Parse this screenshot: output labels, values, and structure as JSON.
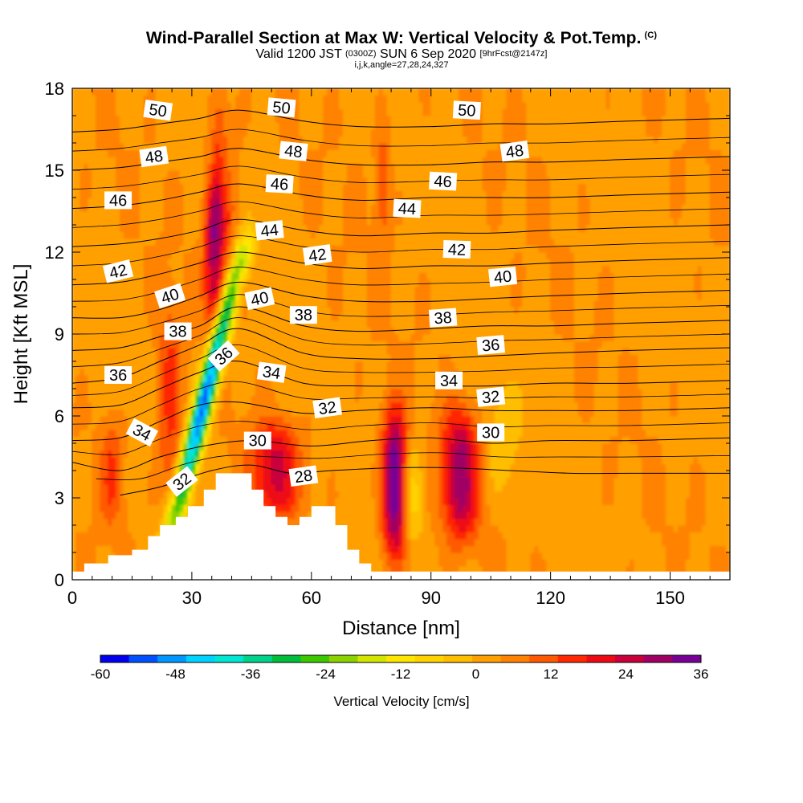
{
  "title": "Wind-Parallel Section at Max W: Vertical Velocity & Pot.Temp.",
  "title_mark": "(C)",
  "subtitle_main": "Valid 1200 JST",
  "subtitle_utc": "(0300Z)",
  "subtitle_date": "SUN 6 Sep 2020",
  "subtitle_fcst": "[9hrFcst@2147z]",
  "params": "i,j,k,angle=27,28,24,327",
  "chart_data": {
    "type": "heatmap",
    "xlabel": "Distance [nm]",
    "ylabel": "Height [Kft MSL]",
    "xlim": [
      0,
      165
    ],
    "ylim": [
      0,
      18
    ],
    "x_ticks": [
      0,
      30,
      60,
      90,
      120,
      150
    ],
    "x_tick_labels": [
      "0",
      "30",
      "60",
      "90",
      "120",
      "150"
    ],
    "y_ticks": [
      0,
      3,
      6,
      9,
      12,
      15,
      18
    ],
    "y_tick_labels": [
      "0",
      "3",
      "6",
      "9",
      "12",
      "15",
      "18"
    ],
    "fill_variable": "Vertical Velocity [cm/s]",
    "colorbar": {
      "label": "Vertical Velocity [cm/s]",
      "range": [
        -60,
        36
      ],
      "ticks": [
        -60,
        -48,
        -36,
        -24,
        -12,
        0,
        12,
        24,
        36
      ],
      "tick_labels": [
        "-60",
        "-48",
        "-36",
        "-24",
        "-12",
        "0",
        "12",
        "24",
        "36"
      ],
      "colors": [
        "#0000ee",
        "#0050ff",
        "#0096ff",
        "#00d2ff",
        "#00e6d2",
        "#00d28c",
        "#00be3c",
        "#3cc800",
        "#8cd200",
        "#d2e600",
        "#ffe600",
        "#ffd200",
        "#ffbe00",
        "#ffa000",
        "#ff8200",
        "#ff5a00",
        "#ff2800",
        "#ee0a14",
        "#c8003c",
        "#a00064",
        "#780096"
      ]
    },
    "background_w": 3,
    "vertical_velocity_features": [
      {
        "kind": "updraft",
        "x_center": 36,
        "x_halfwidth": 2.5,
        "y_range": [
          9,
          14.5
        ],
        "peak_w": 28
      },
      {
        "kind": "updraft",
        "x_center": 38,
        "x_halfwidth": 3,
        "y_range": [
          11.5,
          18
        ],
        "peak_w": 18
      },
      {
        "kind": "updraft",
        "x_center": 81,
        "x_halfwidth": 3,
        "y_range": [
          0.8,
          6.2
        ],
        "peak_w": 34
      },
      {
        "kind": "updraft",
        "x_center": 97.5,
        "x_halfwidth": 4.5,
        "y_range": [
          1.5,
          6.2
        ],
        "peak_w": 26
      },
      {
        "kind": "updraft",
        "x_center": 51,
        "x_halfwidth": 6,
        "y_range": [
          2.3,
          5.8
        ],
        "peak_w": 20
      },
      {
        "kind": "updraft",
        "x_center": 24.5,
        "x_halfwidth": 3,
        "y_range": [
          3,
          10
        ],
        "peak_w": 12
      },
      {
        "kind": "updraft",
        "x_center": 78,
        "x_halfwidth": 2,
        "y_range": [
          12,
          17
        ],
        "peak_w": 8
      },
      {
        "kind": "updraft",
        "x_center": 10,
        "x_halfwidth": 3,
        "y_range": [
          2,
          6
        ],
        "peak_w": 10
      },
      {
        "kind": "downdraft",
        "x_start": 26,
        "y_start": 2.5,
        "x_end": 42,
        "y_end": 11.5,
        "halfwidth": 2.5,
        "peak_w": -55
      },
      {
        "kind": "downdraft",
        "x_start": 36,
        "y_start": 10,
        "x_end": 40,
        "y_end": 18,
        "halfwidth": 2,
        "peak_w": -12
      },
      {
        "kind": "downdraft",
        "x_center": 85.5,
        "x_halfwidth": 2.5,
        "y_range": [
          1.5,
          5
        ],
        "peak_w": -12
      },
      {
        "kind": "downdraft",
        "x_center": 108,
        "x_halfwidth": 5,
        "y_range": [
          3,
          7
        ],
        "peak_w": -6
      }
    ],
    "terrain_heights_kft": [
      [
        0,
        0.3
      ],
      [
        3,
        0.6
      ],
      [
        9,
        0.9
      ],
      [
        15,
        1.1
      ],
      [
        19,
        1.6
      ],
      [
        22,
        2.0
      ],
      [
        26,
        2.3
      ],
      [
        29,
        2.7
      ],
      [
        33,
        3.3
      ],
      [
        36,
        3.9
      ],
      [
        42,
        3.9
      ],
      [
        45,
        3.3
      ],
      [
        48,
        2.7
      ],
      [
        51,
        2.3
      ],
      [
        54,
        2.0
      ],
      [
        57,
        2.3
      ],
      [
        60,
        2.7
      ],
      [
        66,
        2.0
      ],
      [
        69,
        1.1
      ],
      [
        72,
        0.6
      ],
      [
        75,
        0.3
      ],
      [
        165,
        0.3
      ]
    ],
    "potential_temperature_contours": [
      {
        "value": 28,
        "label": "28",
        "points": [
          [
            12,
            3.1
          ],
          [
            22,
            3.4
          ],
          [
            35,
            4.0
          ],
          [
            45,
            4.2
          ],
          [
            55,
            3.9
          ],
          [
            65,
            4.0
          ],
          [
            80,
            4.1
          ],
          [
            95,
            4.1
          ],
          [
            110,
            4.0
          ],
          [
            125,
            3.9
          ],
          [
            140,
            3.9
          ],
          [
            165,
            3.9
          ]
        ]
      },
      {
        "value": 30,
        "label": "30",
        "points": [
          [
            0,
            4.3
          ],
          [
            12,
            4.0
          ],
          [
            22,
            4.5
          ],
          [
            33,
            4.9
          ],
          [
            45,
            5.1
          ],
          [
            60,
            4.9
          ],
          [
            75,
            5.1
          ],
          [
            90,
            5.2
          ],
          [
            105,
            5.0
          ],
          [
            120,
            5.1
          ],
          [
            140,
            5.1
          ],
          [
            165,
            5.2
          ]
        ]
      },
      {
        "value": 32,
        "label": "32",
        "points": [
          [
            0,
            5.1
          ],
          [
            12,
            5.2
          ],
          [
            22,
            5.8
          ],
          [
            32,
            6.4
          ],
          [
            42,
            6.5
          ],
          [
            58,
            6.1
          ],
          [
            72,
            6.2
          ],
          [
            90,
            6.3
          ],
          [
            105,
            6.2
          ],
          [
            120,
            6.2
          ],
          [
            140,
            6.2
          ],
          [
            165,
            6.3
          ]
        ]
      },
      {
        "value": 34,
        "label": "34",
        "points": [
          [
            0,
            6.3
          ],
          [
            12,
            6.4
          ],
          [
            22,
            7.0
          ],
          [
            32,
            7.6
          ],
          [
            42,
            8.0
          ],
          [
            58,
            7.2
          ],
          [
            72,
            7.1
          ],
          [
            90,
            7.1
          ],
          [
            105,
            7.1
          ],
          [
            120,
            7.2
          ],
          [
            140,
            7.2
          ],
          [
            165,
            7.3
          ]
        ]
      },
      {
        "value": 36,
        "label": "36",
        "points": [
          [
            0,
            7.2
          ],
          [
            12,
            7.4
          ],
          [
            22,
            8.0
          ],
          [
            32,
            8.6
          ],
          [
            42,
            9.2
          ],
          [
            58,
            8.3
          ],
          [
            72,
            8.1
          ],
          [
            90,
            8.1
          ],
          [
            105,
            8.2
          ],
          [
            120,
            8.3
          ],
          [
            140,
            8.4
          ],
          [
            165,
            8.5
          ]
        ]
      },
      {
        "value": 38,
        "label": "38",
        "points": [
          [
            0,
            8.4
          ],
          [
            12,
            8.5
          ],
          [
            22,
            8.9
          ],
          [
            32,
            9.3
          ],
          [
            42,
            10.0
          ],
          [
            58,
            9.3
          ],
          [
            72,
            9.1
          ],
          [
            90,
            9.2
          ],
          [
            105,
            9.3
          ],
          [
            120,
            9.3
          ],
          [
            140,
            9.4
          ],
          [
            165,
            9.5
          ]
        ]
      },
      {
        "value": 40,
        "label": "40",
        "points": [
          [
            0,
            9.6
          ],
          [
            12,
            9.6
          ],
          [
            22,
            9.9
          ],
          [
            32,
            10.4
          ],
          [
            42,
            10.9
          ],
          [
            58,
            10.4
          ],
          [
            72,
            10.2
          ],
          [
            90,
            10.2
          ],
          [
            105,
            10.3
          ],
          [
            120,
            10.4
          ],
          [
            140,
            10.5
          ],
          [
            165,
            10.6
          ]
        ]
      },
      {
        "value": 42,
        "label": "42",
        "points": [
          [
            0,
            10.8
          ],
          [
            12,
            10.9
          ],
          [
            22,
            11.2
          ],
          [
            32,
            11.6
          ],
          [
            42,
            12.0
          ],
          [
            58,
            11.6
          ],
          [
            72,
            11.4
          ],
          [
            90,
            11.5
          ],
          [
            105,
            11.5
          ],
          [
            120,
            11.6
          ],
          [
            140,
            11.7
          ],
          [
            165,
            11.8
          ]
        ]
      },
      {
        "value": 44,
        "label": "44",
        "points": [
          [
            0,
            12.2
          ],
          [
            12,
            12.3
          ],
          [
            22,
            12.5
          ],
          [
            32,
            12.8
          ],
          [
            42,
            13.2
          ],
          [
            58,
            12.8
          ],
          [
            72,
            12.6
          ],
          [
            90,
            12.7
          ],
          [
            105,
            12.7
          ],
          [
            120,
            12.8
          ],
          [
            140,
            12.9
          ],
          [
            165,
            13.0
          ]
        ]
      },
      {
        "value": 46,
        "label": "46",
        "points": [
          [
            0,
            13.6
          ],
          [
            12,
            13.7
          ],
          [
            22,
            13.9
          ],
          [
            32,
            14.2
          ],
          [
            42,
            14.5
          ],
          [
            58,
            14.1
          ],
          [
            72,
            13.9
          ],
          [
            90,
            14.0
          ],
          [
            105,
            14.0
          ],
          [
            120,
            14.0
          ],
          [
            140,
            14.1
          ],
          [
            165,
            14.2
          ]
        ]
      },
      {
        "value": 48,
        "label": "48",
        "points": [
          [
            0,
            15.0
          ],
          [
            12,
            15.1
          ],
          [
            22,
            15.3
          ],
          [
            32,
            15.5
          ],
          [
            42,
            15.8
          ],
          [
            58,
            15.4
          ],
          [
            72,
            15.2
          ],
          [
            90,
            15.2
          ],
          [
            105,
            15.3
          ],
          [
            120,
            15.3
          ],
          [
            140,
            15.4
          ],
          [
            165,
            15.5
          ]
        ]
      },
      {
        "value": 50,
        "label": "50",
        "points": [
          [
            0,
            16.4
          ],
          [
            12,
            16.5
          ],
          [
            22,
            16.7
          ],
          [
            32,
            16.9
          ],
          [
            42,
            17.2
          ],
          [
            58,
            16.8
          ],
          [
            72,
            16.6
          ],
          [
            90,
            16.6
          ],
          [
            105,
            16.7
          ],
          [
            120,
            16.7
          ],
          [
            140,
            16.8
          ],
          [
            165,
            16.9
          ]
        ]
      }
    ],
    "contour_labels": [
      {
        "text": "50",
        "x": 21.5,
        "y": 17.2,
        "angle": 8
      },
      {
        "text": "50",
        "x": 52.5,
        "y": 17.3,
        "angle": 5
      },
      {
        "text": "50",
        "x": 99,
        "y": 17.2,
        "angle": 3
      },
      {
        "text": "48",
        "x": 20.5,
        "y": 15.5,
        "angle": -8
      },
      {
        "text": "48",
        "x": 55.5,
        "y": 15.7,
        "angle": 6
      },
      {
        "text": "48",
        "x": 111,
        "y": 15.7,
        "angle": -8
      },
      {
        "text": "46",
        "x": 11.5,
        "y": 13.9,
        "angle": 0
      },
      {
        "text": "46",
        "x": 52,
        "y": 14.5,
        "angle": 3
      },
      {
        "text": "46",
        "x": 93,
        "y": 14.6,
        "angle": 3
      },
      {
        "text": "44",
        "x": 49.5,
        "y": 12.8,
        "angle": -6
      },
      {
        "text": "44",
        "x": 84,
        "y": 13.6,
        "angle": 3
      },
      {
        "text": "42",
        "x": 11.5,
        "y": 11.3,
        "angle": -14
      },
      {
        "text": "42",
        "x": 61.5,
        "y": 11.9,
        "angle": -8
      },
      {
        "text": "42",
        "x": 96.5,
        "y": 12.1,
        "angle": 2
      },
      {
        "text": "40",
        "x": 24.5,
        "y": 10.4,
        "angle": -18
      },
      {
        "text": "40",
        "x": 47,
        "y": 10.3,
        "angle": -12
      },
      {
        "text": "40",
        "x": 108,
        "y": 11.1,
        "angle": -6
      },
      {
        "text": "38",
        "x": 26.5,
        "y": 9.1,
        "angle": 0
      },
      {
        "text": "38",
        "x": 58,
        "y": 9.7,
        "angle": 0
      },
      {
        "text": "38",
        "x": 93,
        "y": 9.6,
        "angle": -4
      },
      {
        "text": "36",
        "x": 11.5,
        "y": 7.5,
        "angle": 0
      },
      {
        "text": "36",
        "x": 38,
        "y": 8.2,
        "angle": -42
      },
      {
        "text": "36",
        "x": 105,
        "y": 8.6,
        "angle": -5
      },
      {
        "text": "34",
        "x": 17.5,
        "y": 5.4,
        "angle": 28
      },
      {
        "text": "34",
        "x": 50,
        "y": 7.6,
        "angle": 8
      },
      {
        "text": "34",
        "x": 94.5,
        "y": 7.3,
        "angle": 0
      },
      {
        "text": "32",
        "x": 27.5,
        "y": 3.6,
        "angle": -38
      },
      {
        "text": "32",
        "x": 64,
        "y": 6.3,
        "angle": -8
      },
      {
        "text": "32",
        "x": 105,
        "y": 6.7,
        "angle": -6
      },
      {
        "text": "30",
        "x": 46.5,
        "y": 5.1,
        "angle": 0
      },
      {
        "text": "30",
        "x": 105,
        "y": 5.4,
        "angle": 0
      },
      {
        "text": "28",
        "x": 58,
        "y": 3.8,
        "angle": -8
      }
    ]
  }
}
